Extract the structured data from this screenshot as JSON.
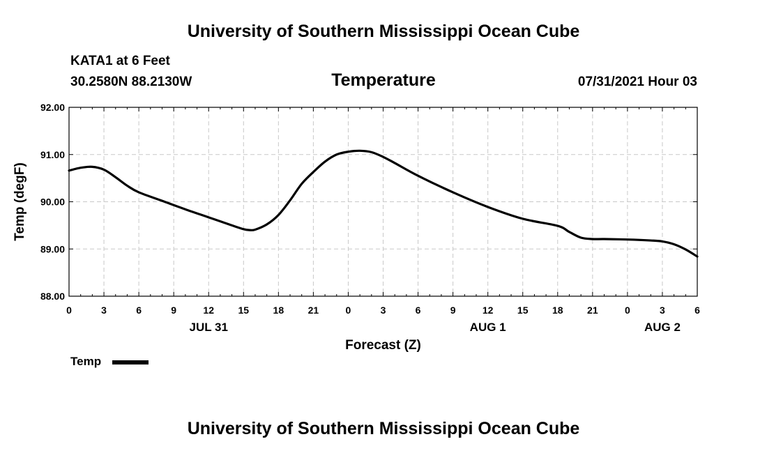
{
  "header": {
    "top_title": "University of Southern Mississippi Ocean Cube",
    "station": "KATA1 at 6 Feet",
    "coords": "30.2580N  88.2130W",
    "date": "07/31/2021 Hour 03",
    "bottom_title": "University of Southern Mississippi Ocean Cube"
  },
  "legend": {
    "label": "Temp"
  },
  "chart_data": {
    "type": "line",
    "title": "Temperature",
    "xlabel": "Forecast (Z)",
    "ylabel": "Temp (degF)",
    "xlim": [
      0,
      54
    ],
    "ylim": [
      88.0,
      92.0
    ],
    "yticks": [
      "88.00",
      "89.00",
      "90.00",
      "91.00",
      "92.00"
    ],
    "ytick_values": [
      88,
      89,
      90,
      91,
      92
    ],
    "xticks": [
      "0",
      "3",
      "6",
      "9",
      "12",
      "15",
      "18",
      "21",
      "0",
      "3",
      "6",
      "9",
      "12",
      "15",
      "18",
      "21",
      "0",
      "3",
      "6"
    ],
    "xtick_values": [
      0,
      3,
      6,
      9,
      12,
      15,
      18,
      21,
      24,
      27,
      30,
      33,
      36,
      39,
      42,
      45,
      48,
      51,
      54
    ],
    "day_labels": [
      "JUL 31",
      "AUG 1",
      "AUG 2"
    ],
    "day_label_positions": [
      12,
      36,
      51
    ],
    "grid": true,
    "series": [
      {
        "name": "Temp",
        "color": "#000000",
        "x": [
          0,
          1,
          2,
          3,
          4,
          5,
          6,
          8,
          10,
          12,
          14,
          15,
          15.5,
          16,
          17,
          18,
          19,
          20,
          21,
          22,
          23,
          24,
          25,
          26,
          27,
          28,
          30,
          33,
          36,
          39,
          42,
          43,
          44,
          45,
          46,
          48,
          50,
          51,
          52,
          53,
          54
        ],
        "values": [
          90.66,
          90.72,
          90.74,
          90.68,
          90.52,
          90.34,
          90.2,
          90.02,
          89.84,
          89.67,
          89.5,
          89.42,
          89.4,
          89.41,
          89.52,
          89.72,
          90.03,
          90.38,
          90.63,
          90.85,
          91.0,
          91.06,
          91.08,
          91.05,
          90.95,
          90.82,
          90.55,
          90.2,
          89.89,
          89.64,
          89.49,
          89.36,
          89.24,
          89.21,
          89.21,
          89.2,
          89.18,
          89.16,
          89.1,
          88.99,
          88.84
        ]
      }
    ]
  }
}
